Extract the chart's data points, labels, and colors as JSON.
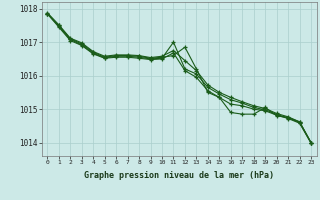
{
  "title": "Graphe pression niveau de la mer (hPa)",
  "bg_color": "#cce9e7",
  "grid_color": "#aacfcd",
  "line_color": "#1a5c1a",
  "xlim": [
    -0.5,
    23.5
  ],
  "ylim": [
    1013.6,
    1018.2
  ],
  "yticks": [
    1014,
    1015,
    1016,
    1017,
    1018
  ],
  "xticks": [
    0,
    1,
    2,
    3,
    4,
    5,
    6,
    7,
    8,
    9,
    10,
    11,
    12,
    13,
    14,
    15,
    16,
    17,
    18,
    19,
    20,
    21,
    22,
    23
  ],
  "line1": {
    "x": [
      0,
      1,
      2,
      3,
      4,
      5,
      6,
      7,
      8,
      9,
      10,
      11,
      12,
      13,
      14,
      15,
      16,
      17,
      18,
      19,
      20,
      21,
      22,
      23
    ],
    "y": [
      1017.85,
      1017.5,
      1017.1,
      1016.95,
      1016.7,
      1016.55,
      1016.6,
      1016.6,
      1016.58,
      1016.52,
      1016.55,
      1016.6,
      1016.85,
      1016.2,
      1015.5,
      1015.35,
      1014.9,
      1014.85,
      1014.85,
      1015.05,
      1014.8,
      1014.75,
      1014.62,
      1014.0
    ]
  },
  "line2": {
    "x": [
      0,
      1,
      2,
      3,
      4,
      5,
      6,
      7,
      8,
      9,
      10,
      11,
      12,
      13,
      14,
      15,
      16,
      17,
      18,
      19,
      20,
      21,
      22,
      23
    ],
    "y": [
      1017.85,
      1017.45,
      1017.05,
      1016.9,
      1016.65,
      1016.52,
      1016.55,
      1016.55,
      1016.52,
      1016.48,
      1016.5,
      1016.68,
      1016.15,
      1015.95,
      1015.55,
      1015.35,
      1015.15,
      1015.1,
      1015.0,
      1014.95,
      1014.82,
      1014.72,
      1014.58,
      1013.98
    ]
  },
  "line3": {
    "x": [
      0,
      1,
      2,
      3,
      4,
      5,
      6,
      7,
      8,
      9,
      10,
      11,
      12,
      13,
      14,
      15,
      16,
      17,
      18,
      19,
      20,
      21,
      22,
      23
    ],
    "y": [
      1017.85,
      1017.48,
      1017.08,
      1016.92,
      1016.67,
      1016.53,
      1016.58,
      1016.58,
      1016.55,
      1016.5,
      1016.52,
      1017.0,
      1016.2,
      1016.05,
      1015.65,
      1015.45,
      1015.28,
      1015.18,
      1015.05,
      1014.98,
      1014.84,
      1014.74,
      1014.6,
      1013.99
    ]
  },
  "line4": {
    "x": [
      0,
      1,
      2,
      3,
      4,
      5,
      6,
      7,
      8,
      9,
      10,
      11,
      12,
      13,
      14,
      15,
      16,
      17,
      18,
      19,
      20,
      21,
      22,
      23
    ],
    "y": [
      1017.88,
      1017.52,
      1017.12,
      1016.98,
      1016.72,
      1016.58,
      1016.62,
      1016.62,
      1016.6,
      1016.54,
      1016.58,
      1016.75,
      1016.45,
      1016.15,
      1015.72,
      1015.5,
      1015.35,
      1015.22,
      1015.1,
      1015.02,
      1014.87,
      1014.77,
      1014.62,
      1014.0
    ]
  }
}
